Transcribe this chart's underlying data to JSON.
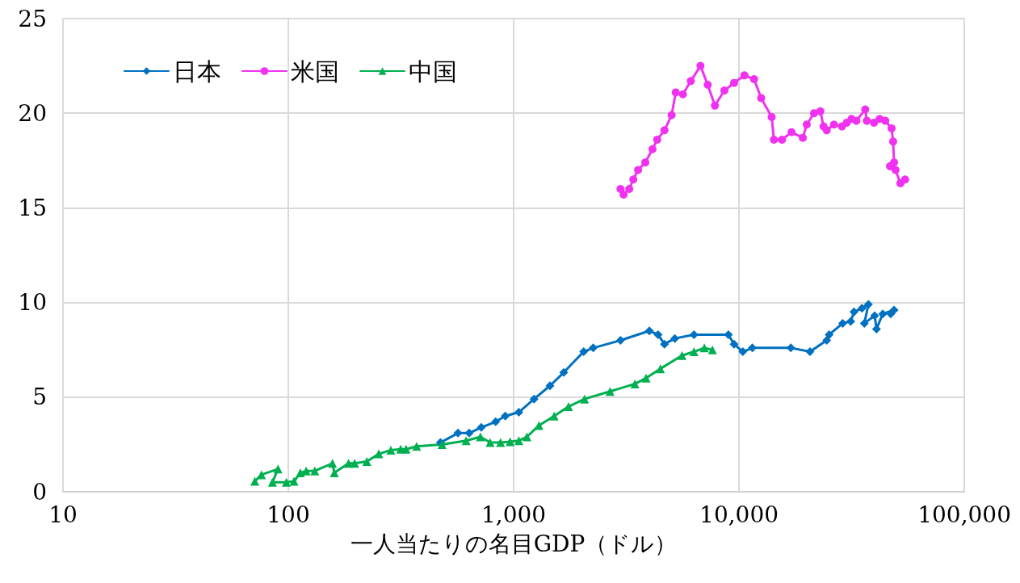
{
  "chart_data": {
    "type": "line",
    "xlabel": "一人当たりの名目GDP（ドル）",
    "log": "x",
    "grid": true,
    "legend": "top left",
    "line_style": "solid",
    "xlim": [
      10,
      100000
    ],
    "xticks": [
      10,
      100,
      {
        "value": 1000,
        "label": "1,000"
      },
      {
        "value": 10000,
        "label": "10,000"
      },
      {
        "value": 100000,
        "label": "100,000"
      }
    ],
    "ylim": [
      0,
      25
    ],
    "yticks": [
      0,
      5,
      10,
      15,
      20,
      25
    ],
    "series": [
      {
        "name": "日本",
        "color": "#0070c0",
        "marker": "diamond",
        "x": [
          473,
          566,
          635,
          718,
          832,
          918,
          1054,
          1231,
          1449,
          1667,
          2045,
          2255,
          2979,
          4000,
          4375,
          4667,
          5188,
          6310,
          8974,
          9506,
          10400,
          11460,
          16980,
          20650,
          24500,
          25120,
          28840,
          31330,
          32370,
          35140,
          37520,
          35980,
          40000,
          40740,
          43450,
          48750,
          47100
        ],
        "values": [
          2.6,
          3.1,
          3.1,
          3.4,
          3.7,
          4.0,
          4.2,
          4.9,
          5.6,
          6.3,
          7.4,
          7.6,
          8.0,
          8.5,
          8.3,
          7.8,
          8.1,
          8.3,
          8.3,
          7.8,
          7.4,
          7.6,
          7.6,
          7.4,
          8.0,
          8.3,
          8.9,
          9.0,
          9.5,
          9.7,
          9.9,
          8.9,
          9.3,
          8.6,
          9.4,
          9.6,
          9.4
        ]
      },
      {
        "name": "米国",
        "color": "#f032f0",
        "marker": "circle",
        "x": [
          2979,
          3076,
          3258,
          3396,
          3565,
          3838,
          4130,
          4335,
          4667,
          5023,
          5236,
          5636,
          6110,
          6745,
          7263,
          7818,
          8612,
          9506,
          10568,
          11660,
          12540,
          13960,
          14290,
          15520,
          17100,
          19190,
          19980,
          21520,
          22960,
          23720,
          24500,
          26380,
          28620,
          30060,
          31560,
          33180,
          36310,
          36900,
          39720,
          42070,
          44570,
          47540,
          48300,
          48750,
          46770,
          49500,
          52000,
          54580
        ],
        "values": [
          16.0,
          15.7,
          16.0,
          16.5,
          17.0,
          17.4,
          18.1,
          18.6,
          19.1,
          19.9,
          21.1,
          21.0,
          21.7,
          22.5,
          21.5,
          20.4,
          21.2,
          21.6,
          22.0,
          21.8,
          20.8,
          19.8,
          18.6,
          18.6,
          19.0,
          18.7,
          19.4,
          20.0,
          20.1,
          19.3,
          19.1,
          19.4,
          19.3,
          19.5,
          19.7,
          19.6,
          20.2,
          19.6,
          19.5,
          19.7,
          19.6,
          19.2,
          18.5,
          17.4,
          17.2,
          17.0,
          16.3,
          16.5
        ]
      },
      {
        "name": "中国",
        "color": "#00b050",
        "marker": "triangle",
        "x": [
          71,
          76,
          90,
          85,
          98,
          106,
          113,
          120,
          131,
          157,
          160,
          185,
          197,
          223,
          252,
          285,
          315,
          333,
          371,
          481,
          615,
          712,
          786,
          874,
          964,
          1054,
          1145,
          1294,
          1512,
          1750,
          2061,
          2677,
          3450,
          3866,
          4477,
          5585,
          6310,
          7015,
          7621
        ],
        "values": [
          0.55,
          0.9,
          1.2,
          0.5,
          0.5,
          0.55,
          1.0,
          1.1,
          1.1,
          1.5,
          1.0,
          1.5,
          1.5,
          1.6,
          2.0,
          2.2,
          2.25,
          2.25,
          2.4,
          2.5,
          2.7,
          2.9,
          2.6,
          2.6,
          2.65,
          2.7,
          2.9,
          3.5,
          4.0,
          4.5,
          4.9,
          5.3,
          5.7,
          6.0,
          6.5,
          7.2,
          7.4,
          7.6,
          7.5
        ]
      }
    ]
  }
}
